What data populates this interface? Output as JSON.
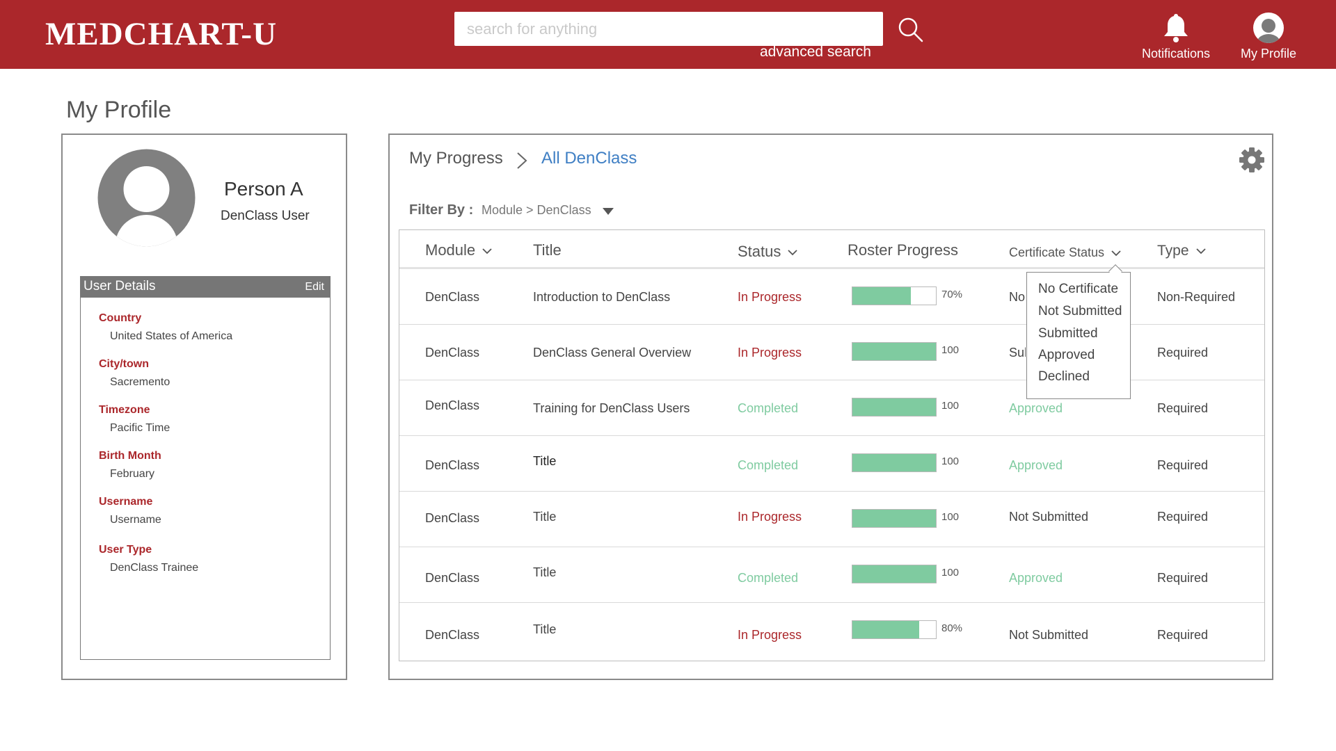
{
  "header": {
    "logo": "MEDCHART-U",
    "search_placeholder": "search for anything",
    "advanced_search": "advanced search",
    "notifications_label": "Notifications",
    "profile_label": "My Profile",
    "brand_color": "#ab272b"
  },
  "page": {
    "title": "My Profile"
  },
  "profile": {
    "name": "Person A",
    "role": "DenClass User",
    "details_title": "User Details",
    "edit_label": "Edit",
    "fields": [
      {
        "key": "Country",
        "value": "United States of America"
      },
      {
        "key": "City/town",
        "value": "Sacremento"
      },
      {
        "key": "Timezone",
        "value": "Pacific Time"
      },
      {
        "key": "Birth Month",
        "value": "February"
      },
      {
        "key": "Username",
        "value": "Username"
      },
      {
        "key": "User Type",
        "value": "DenClass Trainee"
      }
    ]
  },
  "progress": {
    "breadcrumb_root": "My Progress",
    "breadcrumb_current": "All DenClass",
    "filter_label": "Filter By :",
    "filter_value": "Module > DenClass",
    "columns": {
      "module": "Module",
      "title": "Title",
      "status": "Status",
      "roster": "Roster Progress",
      "cert": "Certificate Status",
      "type": "Type"
    },
    "rows": [
      {
        "module": "DenClass",
        "title": "Introduction to DenClass",
        "status": "In Progress",
        "progress": 0.7,
        "progress_label": "70%",
        "cert": "No Certificate",
        "type": "Non-Required"
      },
      {
        "module": "DenClass",
        "title": "DenClass General Overview",
        "status": "In Progress",
        "progress": 1.0,
        "progress_label": "100",
        "cert": "Submitted",
        "type": "Required"
      },
      {
        "module": "DenClass",
        "title": "Training for DenClass Users",
        "status": "Completed",
        "progress": 1.0,
        "progress_label": "100",
        "cert": "Approved",
        "type": "Required"
      },
      {
        "module": "DenClass",
        "title": "Title",
        "status": "Completed",
        "progress": 1.0,
        "progress_label": "100",
        "cert": "Approved",
        "type": "Required"
      },
      {
        "module": "DenClass",
        "title": "Title",
        "status": "In Progress",
        "progress": 1.0,
        "progress_label": "100",
        "cert": "Not Submitted",
        "type": "Required"
      },
      {
        "module": "DenClass",
        "title": "Title",
        "status": "Completed",
        "progress": 1.0,
        "progress_label": "100",
        "cert": "Approved",
        "type": "Required"
      },
      {
        "module": "DenClass",
        "title": "Title",
        "status": "In Progress",
        "progress": 0.8,
        "progress_label": "80%",
        "cert": "Not Submitted",
        "type": "Required"
      }
    ],
    "cert_dropdown_options": [
      "No Certificate",
      "Not Submitted",
      "Submitted",
      "Approved",
      "Declined"
    ],
    "status_colors": {
      "in_progress": "#ab272b",
      "completed": "#7fcba0"
    },
    "bar_color": "#7fcba0"
  }
}
